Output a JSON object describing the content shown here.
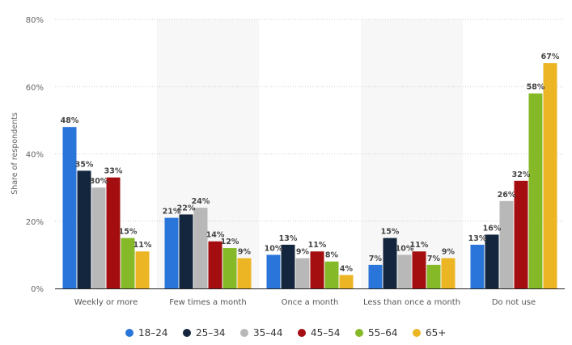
{
  "chart_data": {
    "type": "bar",
    "title": "",
    "xlabel": "",
    "ylabel": "Share of respondents",
    "ylim": [
      0,
      80
    ],
    "yticks": [
      "0%",
      "20%",
      "40%",
      "60%",
      "80%"
    ],
    "ytick_values": [
      0,
      20,
      40,
      60,
      80
    ],
    "grid": true,
    "legend_position": "bottom",
    "categories": [
      "Weekly or more",
      "Few times a month",
      "Once a month",
      "Less than once a month",
      "Do not use"
    ],
    "series": [
      {
        "name": "18-24",
        "color": "#2a75d9",
        "values": [
          48,
          21,
          10,
          7,
          13
        ]
      },
      {
        "name": "25-34",
        "color": "#13263d",
        "values": [
          35,
          22,
          13,
          15,
          16
        ]
      },
      {
        "name": "35-44",
        "color": "#b8b8b8",
        "values": [
          30,
          24,
          9,
          10,
          26
        ]
      },
      {
        "name": "45-54",
        "color": "#a50e10",
        "values": [
          33,
          14,
          11,
          11,
          32
        ]
      },
      {
        "name": "55-64",
        "color": "#86b928",
        "values": [
          15,
          12,
          8,
          7,
          58
        ]
      },
      {
        "name": "65+",
        "color": "#ebb524",
        "values": [
          11,
          9,
          4,
          9,
          67
        ]
      }
    ],
    "value_suffix": "%"
  }
}
